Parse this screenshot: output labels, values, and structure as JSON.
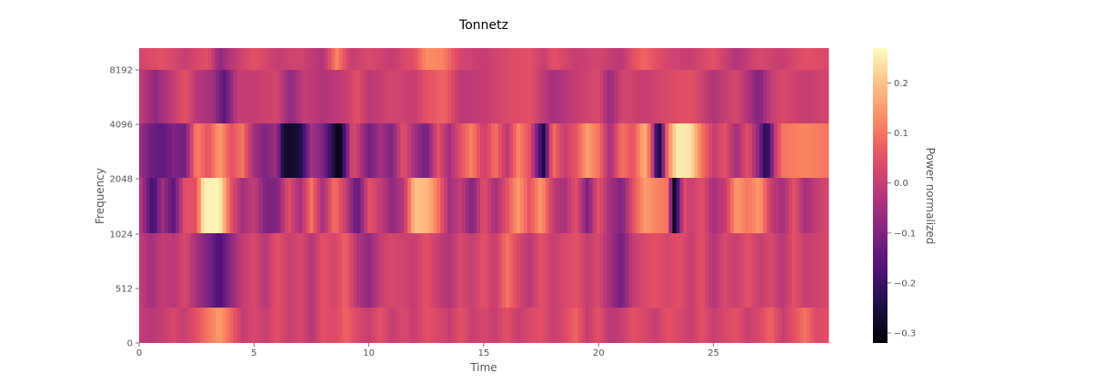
{
  "chart_data": {
    "type": "heatmap",
    "title": "Tonnetz",
    "xlabel": "Time",
    "ylabel": "Frequency",
    "colorbar_label": "Power normalized",
    "colormap": "magma",
    "xlim": [
      0,
      30
    ],
    "x_ticks": [
      0,
      5,
      10,
      15,
      20,
      25
    ],
    "x_tick_labels": [
      "0",
      "5",
      "10",
      "15",
      "20",
      "25"
    ],
    "y_tick_labels": [
      "0",
      "512",
      "1024",
      "2048",
      "4096",
      "8192"
    ],
    "rows_top_to_bottom": [
      {
        "name": "row-6",
        "keyframes": [
          [
            0,
            0.02
          ],
          [
            1,
            0.05
          ],
          [
            2,
            0.0
          ],
          [
            3,
            0.05
          ],
          [
            3.5,
            -0.08
          ],
          [
            4,
            -0.02
          ],
          [
            5,
            0.05
          ],
          [
            6,
            0.0
          ],
          [
            7,
            0.02
          ],
          [
            8,
            -0.03
          ],
          [
            8.6,
            0.12
          ],
          [
            9.2,
            0.0
          ],
          [
            10,
            0.03
          ],
          [
            11,
            0.0
          ],
          [
            12,
            0.05
          ],
          [
            12.5,
            0.13
          ],
          [
            13.2,
            0.12
          ],
          [
            14,
            0.02
          ],
          [
            15,
            0.0
          ],
          [
            16,
            0.03
          ],
          [
            17,
            0.05
          ],
          [
            17.6,
            0.0
          ],
          [
            18,
            0.05
          ],
          [
            19,
            0.0
          ],
          [
            20,
            0.02
          ],
          [
            21,
            -0.02
          ],
          [
            21.5,
            0.05
          ],
          [
            22,
            0.08
          ],
          [
            23,
            0.02
          ],
          [
            24,
            0.0
          ],
          [
            25,
            0.05
          ],
          [
            26,
            -0.03
          ],
          [
            27,
            0.03
          ],
          [
            28,
            0.0
          ],
          [
            29,
            0.05
          ],
          [
            30,
            0.03
          ]
        ]
      },
      {
        "name": "row-5",
        "keyframes": [
          [
            0,
            0.0
          ],
          [
            0.7,
            -0.08
          ],
          [
            1.5,
            0.0
          ],
          [
            2,
            0.05
          ],
          [
            2.5,
            -0.02
          ],
          [
            3.2,
            -0.05
          ],
          [
            3.7,
            -0.15
          ],
          [
            4.3,
            0.0
          ],
          [
            5,
            0.0
          ],
          [
            6,
            0.02
          ],
          [
            6.6,
            -0.08
          ],
          [
            7.2,
            0.0
          ],
          [
            8,
            -0.03
          ],
          [
            9,
            0.0
          ],
          [
            9.5,
            0.05
          ],
          [
            10,
            -0.02
          ],
          [
            11,
            0.02
          ],
          [
            12,
            0.0
          ],
          [
            12.5,
            0.05
          ],
          [
            13.3,
            0.08
          ],
          [
            14,
            -0.02
          ],
          [
            15,
            0.0
          ],
          [
            16,
            0.03
          ],
          [
            17,
            0.05
          ],
          [
            18,
            -0.05
          ],
          [
            19,
            0.0
          ],
          [
            20,
            0.03
          ],
          [
            20.5,
            -0.07
          ],
          [
            21,
            0.02
          ],
          [
            22,
            0.0
          ],
          [
            23,
            0.03
          ],
          [
            24,
            0.05
          ],
          [
            25,
            -0.03
          ],
          [
            26,
            0.03
          ],
          [
            27,
            -0.1
          ],
          [
            27.5,
            0.0
          ],
          [
            28,
            0.03
          ],
          [
            29,
            0.0
          ],
          [
            30,
            0.02
          ]
        ]
      },
      {
        "name": "row-4",
        "keyframes": [
          [
            0,
            -0.05
          ],
          [
            0.5,
            -0.12
          ],
          [
            1,
            -0.15
          ],
          [
            1.5,
            -0.1
          ],
          [
            2,
            -0.12
          ],
          [
            2.5,
            0.12
          ],
          [
            3,
            0.05
          ],
          [
            3.5,
            0.15
          ],
          [
            4,
            0.05
          ],
          [
            4.5,
            0.1
          ],
          [
            5,
            -0.05
          ],
          [
            5.5,
            -0.1
          ],
          [
            6,
            -0.05
          ],
          [
            6.3,
            -0.28
          ],
          [
            7,
            -0.25
          ],
          [
            7.5,
            -0.05
          ],
          [
            8,
            -0.1
          ],
          [
            8.7,
            -0.32
          ],
          [
            9.3,
            0.05
          ],
          [
            10,
            -0.12
          ],
          [
            10.5,
            -0.05
          ],
          [
            11,
            -0.1
          ],
          [
            11.5,
            0.05
          ],
          [
            12,
            -0.05
          ],
          [
            12.5,
            -0.12
          ],
          [
            13,
            0.05
          ],
          [
            13.5,
            -0.05
          ],
          [
            14,
            0.05
          ],
          [
            14.5,
            0.12
          ],
          [
            15,
            0.0
          ],
          [
            15.5,
            0.1
          ],
          [
            16,
            -0.02
          ],
          [
            16.5,
            0.12
          ],
          [
            17,
            0.05
          ],
          [
            17.6,
            -0.25
          ],
          [
            18,
            0.1
          ],
          [
            18.5,
            0.0
          ],
          [
            19,
            0.05
          ],
          [
            19.5,
            0.15
          ],
          [
            20,
            0.1
          ],
          [
            20.5,
            -0.05
          ],
          [
            21,
            0.1
          ],
          [
            21.5,
            0.05
          ],
          [
            22,
            0.18
          ],
          [
            22.3,
            0.05
          ],
          [
            22.6,
            -0.3
          ],
          [
            23,
            0.1
          ],
          [
            23.4,
            0.25
          ],
          [
            24,
            0.24
          ],
          [
            24.5,
            0.1
          ],
          [
            25,
            0.0
          ],
          [
            25.5,
            0.05
          ],
          [
            26,
            -0.05
          ],
          [
            26.5,
            0.05
          ],
          [
            27,
            -0.1
          ],
          [
            27.3,
            -0.25
          ],
          [
            27.7,
            0.0
          ],
          [
            28,
            0.1
          ],
          [
            29,
            0.12
          ],
          [
            30,
            0.1
          ]
        ]
      },
      {
        "name": "row-3",
        "keyframes": [
          [
            0,
            0.0
          ],
          [
            0.6,
            -0.2
          ],
          [
            1,
            -0.05
          ],
          [
            1.5,
            -0.15
          ],
          [
            2,
            0.05
          ],
          [
            2.5,
            0.05
          ],
          [
            2.8,
            0.25
          ],
          [
            3.5,
            0.26
          ],
          [
            4,
            0.05
          ],
          [
            4.5,
            -0.05
          ],
          [
            5,
            0.0
          ],
          [
            5.5,
            -0.1
          ],
          [
            6,
            -0.1
          ],
          [
            6.5,
            0.05
          ],
          [
            7,
            -0.05
          ],
          [
            7.5,
            0.1
          ],
          [
            8,
            -0.05
          ],
          [
            8.5,
            0.1
          ],
          [
            9,
            0.0
          ],
          [
            9.5,
            -0.15
          ],
          [
            10,
            0.05
          ],
          [
            10.5,
            0.0
          ],
          [
            11,
            -0.08
          ],
          [
            11.5,
            -0.02
          ],
          [
            12,
            0.2
          ],
          [
            12.6,
            0.18
          ],
          [
            13,
            0.1
          ],
          [
            13.5,
            -0.05
          ],
          [
            14,
            0.0
          ],
          [
            14.5,
            -0.1
          ],
          [
            15,
            0.05
          ],
          [
            15.5,
            -0.05
          ],
          [
            16,
            0.05
          ],
          [
            16.5,
            0.15
          ],
          [
            17,
            0.05
          ],
          [
            17.5,
            0.15
          ],
          [
            18,
            0.0
          ],
          [
            18.5,
            -0.05
          ],
          [
            19,
            0.05
          ],
          [
            19.5,
            -0.1
          ],
          [
            20,
            0.05
          ],
          [
            20.5,
            -0.05
          ],
          [
            21,
            -0.1
          ],
          [
            21.5,
            0.05
          ],
          [
            22,
            0.15
          ],
          [
            22.5,
            0.12
          ],
          [
            23,
            0.1
          ],
          [
            23.3,
            -0.3
          ],
          [
            23.7,
            0.05
          ],
          [
            24,
            0.0
          ],
          [
            24.5,
            0.05
          ],
          [
            25,
            -0.05
          ],
          [
            25.5,
            0.0
          ],
          [
            26,
            0.15
          ],
          [
            26.5,
            0.1
          ],
          [
            27,
            0.15
          ],
          [
            27.5,
            0.0
          ],
          [
            28,
            -0.05
          ],
          [
            28.5,
            0.05
          ],
          [
            29,
            -0.05
          ],
          [
            29.5,
            0.0
          ],
          [
            30,
            0.03
          ]
        ]
      },
      {
        "name": "row-2",
        "keyframes": [
          [
            0,
            0.0
          ],
          [
            0.5,
            -0.05
          ],
          [
            1,
            0.0
          ],
          [
            1.5,
            -0.02
          ],
          [
            2,
            0.03
          ],
          [
            2.5,
            -0.05
          ],
          [
            3,
            -0.1
          ],
          [
            3.5,
            -0.18
          ],
          [
            4,
            -0.08
          ],
          [
            4.5,
            0.0
          ],
          [
            5,
            0.03
          ],
          [
            5.5,
            -0.02
          ],
          [
            6,
            0.05
          ],
          [
            6.5,
            0.0
          ],
          [
            7,
            0.03
          ],
          [
            7.5,
            -0.02
          ],
          [
            8,
            0.05
          ],
          [
            8.5,
            0.02
          ],
          [
            9,
            0.08
          ],
          [
            9.5,
            -0.03
          ],
          [
            10,
            -0.08
          ],
          [
            10.5,
            0.0
          ],
          [
            11,
            0.03
          ],
          [
            12,
            0.0
          ],
          [
            12.5,
            0.05
          ],
          [
            13,
            0.0
          ],
          [
            13.5,
            -0.03
          ],
          [
            14,
            0.03
          ],
          [
            14.5,
            0.0
          ],
          [
            15,
            0.05
          ],
          [
            15.5,
            0.0
          ],
          [
            16,
            0.1
          ],
          [
            16.5,
            0.03
          ],
          [
            17,
            -0.02
          ],
          [
            17.5,
            0.05
          ],
          [
            18,
            0.0
          ],
          [
            19,
            0.05
          ],
          [
            19.5,
            0.0
          ],
          [
            20,
            0.03
          ],
          [
            20.5,
            -0.05
          ],
          [
            21,
            -0.12
          ],
          [
            21.5,
            0.0
          ],
          [
            22,
            0.03
          ],
          [
            22.5,
            0.05
          ],
          [
            23,
            0.02
          ],
          [
            23.5,
            0.05
          ],
          [
            24,
            0.0
          ],
          [
            24.5,
            0.05
          ],
          [
            25,
            -0.03
          ],
          [
            25.5,
            0.03
          ],
          [
            26,
            0.0
          ],
          [
            26.5,
            0.05
          ],
          [
            27,
            0.0
          ],
          [
            27.5,
            0.03
          ],
          [
            28,
            -0.02
          ],
          [
            28.5,
            0.05
          ],
          [
            29,
            0.0
          ],
          [
            30,
            0.03
          ]
        ]
      },
      {
        "name": "row-1",
        "keyframes": [
          [
            0,
            0.0
          ],
          [
            0.5,
            -0.02
          ],
          [
            1,
            0.0
          ],
          [
            1.5,
            0.03
          ],
          [
            2,
            0.0
          ],
          [
            2.5,
            0.05
          ],
          [
            3,
            0.1
          ],
          [
            3.5,
            0.15
          ],
          [
            4,
            0.08
          ],
          [
            4.5,
            0.0
          ],
          [
            5,
            0.03
          ],
          [
            5.5,
            0.0
          ],
          [
            6,
            0.05
          ],
          [
            6.5,
            0.0
          ],
          [
            7,
            0.03
          ],
          [
            7.5,
            -0.02
          ],
          [
            8,
            0.05
          ],
          [
            8.5,
            0.03
          ],
          [
            9,
            0.08
          ],
          [
            9.5,
            0.03
          ],
          [
            10,
            0.0
          ],
          [
            10.5,
            0.05
          ],
          [
            11,
            0.0
          ],
          [
            11.5,
            0.03
          ],
          [
            12,
            0.0
          ],
          [
            12.5,
            0.05
          ],
          [
            13,
            0.03
          ],
          [
            13.5,
            0.0
          ],
          [
            14,
            0.05
          ],
          [
            14.5,
            0.0
          ],
          [
            15,
            0.03
          ],
          [
            15.5,
            0.0
          ],
          [
            16,
            0.05
          ],
          [
            16.5,
            0.0
          ],
          [
            17,
            0.03
          ],
          [
            17.5,
            0.05
          ],
          [
            18,
            0.0
          ],
          [
            18.5,
            0.03
          ],
          [
            19,
            0.08
          ],
          [
            19.5,
            0.0
          ],
          [
            20,
            0.05
          ],
          [
            20.5,
            -0.02
          ],
          [
            21,
            0.0
          ],
          [
            21.5,
            0.05
          ],
          [
            22,
            0.03
          ],
          [
            22.5,
            0.0
          ],
          [
            23,
            0.05
          ],
          [
            23.5,
            0.03
          ],
          [
            24,
            0.0
          ],
          [
            24.5,
            0.05
          ],
          [
            25,
            0.0
          ],
          [
            25.5,
            0.03
          ],
          [
            26,
            0.05
          ],
          [
            26.5,
            0.0
          ],
          [
            27,
            0.03
          ],
          [
            27.5,
            0.08
          ],
          [
            28,
            0.0
          ],
          [
            28.5,
            0.05
          ],
          [
            29,
            0.1
          ],
          [
            29.5,
            0.03
          ],
          [
            30,
            0.05
          ]
        ]
      }
    ],
    "colorbar": {
      "vmin": -0.32,
      "vmax": 0.27,
      "ticks": [
        0.2,
        0.1,
        0.0,
        -0.1,
        -0.2,
        -0.3
      ],
      "tick_labels": [
        "0.2",
        "0.1",
        "0.0",
        "−0.1",
        "−0.2",
        "−0.3"
      ]
    }
  }
}
